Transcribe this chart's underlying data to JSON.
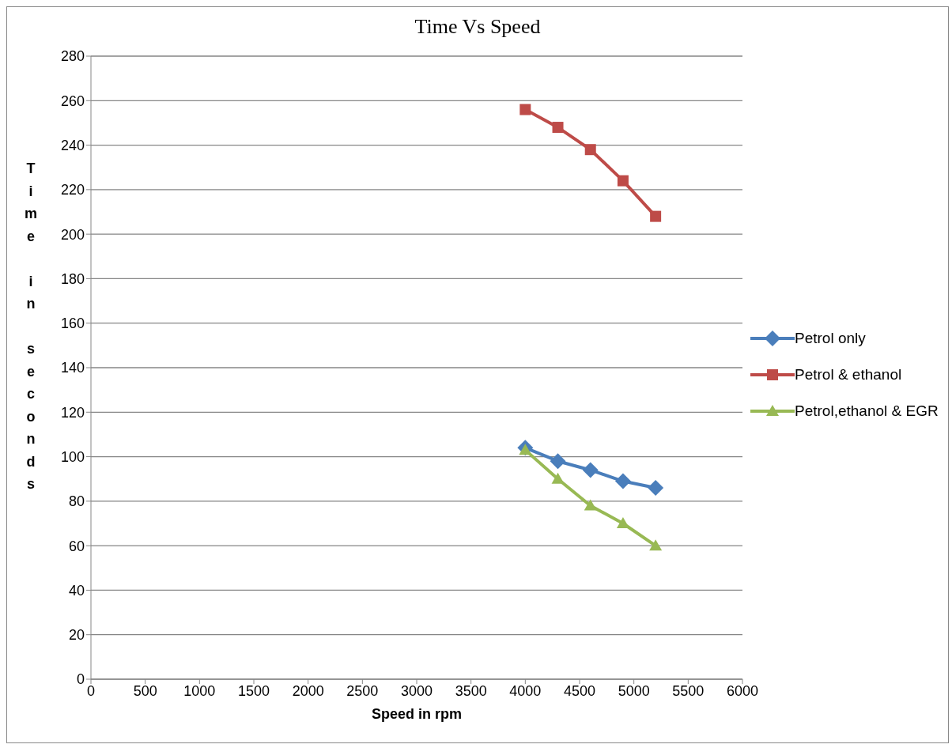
{
  "chart_data": {
    "type": "line",
    "title": "Time Vs Speed",
    "xlabel": "Speed in rpm",
    "ylabel": "Time in seconds",
    "x": [
      4000,
      4300,
      4600,
      4900,
      5200
    ],
    "series": [
      {
        "name": "Petrol only",
        "color": "#4a7ebb",
        "marker": "diamond",
        "values": [
          104,
          98,
          94,
          89,
          86
        ]
      },
      {
        "name": "Petrol & ethanol",
        "color": "#be4b48",
        "marker": "square",
        "values": [
          256,
          248,
          238,
          224,
          208
        ]
      },
      {
        "name": "Petrol,ethanol & EGR",
        "color": "#98b954",
        "marker": "triangle",
        "values": [
          103,
          90,
          78,
          70,
          60
        ]
      }
    ],
    "xlim": [
      0,
      6000
    ],
    "xticks": [
      0,
      500,
      1000,
      1500,
      2000,
      2500,
      3000,
      3500,
      4000,
      4500,
      5000,
      5500,
      6000
    ],
    "ylim": [
      0,
      280
    ],
    "yticks": [
      0,
      20,
      40,
      60,
      80,
      100,
      120,
      140,
      160,
      180,
      200,
      220,
      240,
      260,
      280
    ],
    "grid": "y",
    "legend": "right",
    "line_style": "solid"
  }
}
